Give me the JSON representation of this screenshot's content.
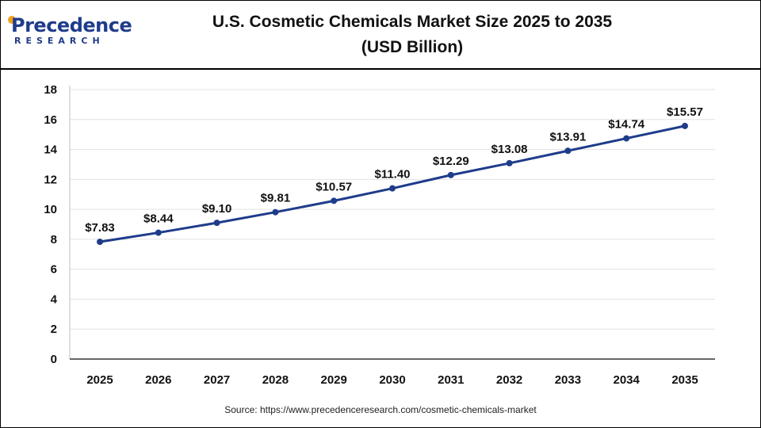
{
  "logo": {
    "word": "Precedence",
    "sub": "RESEARCH"
  },
  "title_line1": "U.S. Cosmetic Chemicals Market Size 2025 to 2035",
  "title_line2": "(USD Billion)",
  "source": "Source: https://www.precedenceresearch.com/cosmetic-chemicals-market",
  "chart_data": {
    "type": "line",
    "x": [
      "2025",
      "2026",
      "2027",
      "2028",
      "2029",
      "2030",
      "2031",
      "2032",
      "2033",
      "2034",
      "2035"
    ],
    "series": [
      {
        "values": [
          7.83,
          8.44,
          9.1,
          9.81,
          10.57,
          11.4,
          12.29,
          13.08,
          13.91,
          14.74,
          15.57
        ],
        "labels": [
          "$7.83",
          "$8.44",
          "$9.10",
          "$9.81",
          "$10.57",
          "$11.40",
          "$12.29",
          "$13.08",
          "$13.91",
          "$14.74",
          "$15.57"
        ],
        "color": "#1f3c8a"
      }
    ],
    "ylim": [
      0,
      18
    ],
    "yticks": [
      "0",
      "2",
      "4",
      "6",
      "8",
      "10",
      "12",
      "14",
      "16",
      "18"
    ],
    "grid": true,
    "legend": "none"
  }
}
